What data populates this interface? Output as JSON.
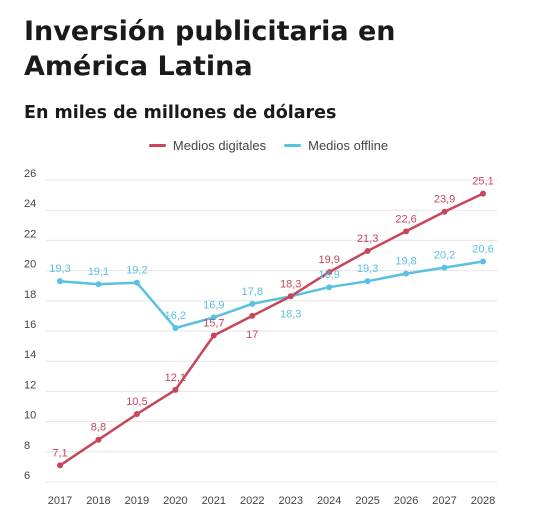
{
  "header": {
    "title": "Inversión publicitaria en América Latina",
    "subtitle": "En miles de millones de dólares"
  },
  "colors": {
    "digital": "#c8465c",
    "offline": "#58c1e1",
    "grid": "#e6e6e6"
  },
  "chart_data": {
    "type": "line",
    "x": [
      "2017",
      "2018",
      "2019",
      "2020",
      "2021",
      "2022",
      "2023",
      "2024",
      "2025",
      "2026",
      "2027",
      "2028"
    ],
    "ylim": [
      6,
      26
    ],
    "yticks": [
      "6",
      "8",
      "10",
      "12",
      "14",
      "16",
      "18",
      "20",
      "22",
      "24",
      "26"
    ],
    "grid": true,
    "legend": "top-center",
    "series": [
      {
        "name": "Medios digitales",
        "values": [
          7.1,
          8.8,
          10.5,
          12.1,
          15.7,
          17,
          18.3,
          19.9,
          21.3,
          22.6,
          23.9,
          25.1
        ],
        "labels": [
          "7,1",
          "8,8",
          "10,5",
          "12,1",
          "15,7",
          "17",
          "18,3",
          "19,9",
          "21,3",
          "22,6",
          "23,9",
          "25,1"
        ]
      },
      {
        "name": "Medios offline",
        "values": [
          19.3,
          19.1,
          19.2,
          16.2,
          16.9,
          17.8,
          18.3,
          18.9,
          19.3,
          19.8,
          20.2,
          20.6
        ],
        "labels": [
          "19,3",
          "19,1",
          "19,2",
          "16,2",
          "16,9",
          "17,8",
          "18,3",
          "18,9",
          "19,3",
          "19,8",
          "20,2",
          "20,6"
        ]
      }
    ]
  }
}
